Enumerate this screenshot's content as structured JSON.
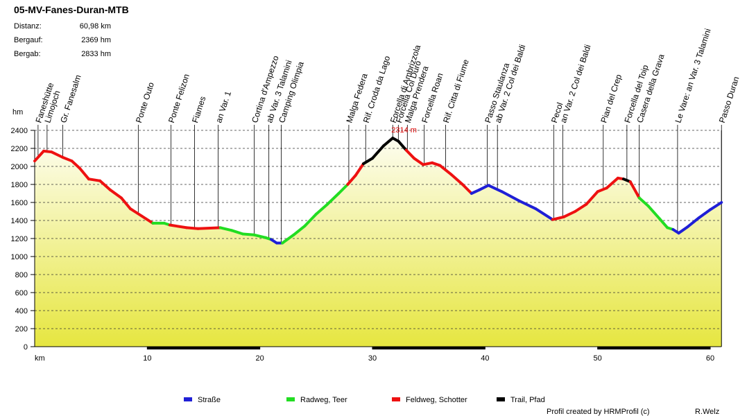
{
  "header": {
    "title": "05-MV-Fanes-Duran-MTB",
    "stats": [
      {
        "label": "Distanz:",
        "value": "60,98 km"
      },
      {
        "label": "Bergauf:",
        "value": "2369 hm"
      },
      {
        "label": "Bergab:",
        "value": "2833 hm"
      }
    ]
  },
  "chart_data": {
    "type": "elevation-profile",
    "x_label": "km",
    "y_label": "hm",
    "xlim": [
      0,
      61
    ],
    "xticks": [
      10,
      20,
      30,
      40,
      50,
      60
    ],
    "ylim": [
      0,
      2400
    ],
    "yticks": [
      0,
      200,
      400,
      600,
      800,
      1000,
      1200,
      1400,
      1600,
      1800,
      2000,
      2200,
      2400
    ],
    "grid": true,
    "x": [
      0,
      0.8,
      1.5,
      2.5,
      3.3,
      4.0,
      4.8,
      5.8,
      6.7,
      7.7,
      8.5,
      9.5,
      10.5,
      11.5,
      12.0,
      13.5,
      14.5,
      16.5,
      17.5,
      18.5,
      19.5,
      20.5,
      21.0,
      21.5,
      22.0,
      23,
      24,
      25,
      26,
      27,
      27.8,
      28.5,
      29.2,
      30,
      31,
      31.8,
      32.3,
      33,
      33.7,
      34.5,
      35.3,
      36,
      37,
      38,
      38.8,
      39.5,
      40.3,
      41.5,
      43,
      44.5,
      46,
      47,
      48,
      49,
      50,
      50.8,
      51.8,
      52.3,
      52.9,
      53.7,
      54.5,
      55.5,
      56.2,
      56.7,
      57.2,
      58,
      59,
      60,
      61
    ],
    "values": [
      2060,
      2170,
      2160,
      2100,
      2060,
      1980,
      1860,
      1840,
      1740,
      1650,
      1530,
      1450,
      1370,
      1370,
      1350,
      1320,
      1310,
      1320,
      1290,
      1250,
      1240,
      1210,
      1190,
      1150,
      1150,
      1240,
      1340,
      1470,
      1580,
      1700,
      1800,
      1900,
      2030,
      2090,
      2230,
      2314,
      2280,
      2180,
      2090,
      2020,
      2040,
      2010,
      1910,
      1800,
      1700,
      1740,
      1790,
      1720,
      1620,
      1530,
      1410,
      1440,
      1500,
      1580,
      1720,
      1760,
      1870,
      1860,
      1830,
      1650,
      1560,
      1420,
      1320,
      1300,
      1260,
      1330,
      1430,
      1520,
      1600
    ],
    "surface": [
      2,
      2,
      2,
      2,
      2,
      2,
      2,
      2,
      2,
      2,
      2,
      2,
      1,
      1,
      2,
      2,
      2,
      1,
      1,
      1,
      1,
      1,
      0,
      0,
      1,
      1,
      1,
      1,
      1,
      1,
      2,
      2,
      3,
      3,
      3,
      3,
      3,
      2,
      2,
      2,
      2,
      2,
      2,
      2,
      0,
      0,
      0,
      0,
      0,
      0,
      2,
      2,
      2,
      2,
      2,
      2,
      2,
      3,
      2,
      1,
      1,
      1,
      1,
      0,
      0,
      0,
      0,
      0
    ],
    "series": [
      {
        "name": "Straße",
        "color": "#1f1fd6"
      },
      {
        "name": "Radweg, Teer",
        "color": "#22dd22"
      },
      {
        "name": "Feldweg, Schotter",
        "color": "#ee1111"
      },
      {
        "name": "Trail, Pfad",
        "color": "#000000"
      }
    ],
    "peak_label": "2314 m",
    "waypoints": [
      {
        "label": "Faneshütte",
        "km": 0.3
      },
      {
        "label": "Limojoch",
        "km": 1.1
      },
      {
        "label": "Gr. Fanesalm",
        "km": 2.5
      },
      {
        "label": "Ponte Outo",
        "km": 9.2
      },
      {
        "label": "Ponte Felizon",
        "km": 12.1
      },
      {
        "label": "Fiames",
        "km": 14.2
      },
      {
        "label": "an Var. 1",
        "km": 16.3
      },
      {
        "label": "Cortina d'Ampezzo",
        "km": 19.5
      },
      {
        "label": "ab Var. 3 Talamini",
        "km": 20.8
      },
      {
        "label": "Camping Olimpia",
        "km": 21.9
      },
      {
        "label": "Malga Federa",
        "km": 27.9
      },
      {
        "label": "Rif. Croda da Lago",
        "km": 29.4
      },
      {
        "label": "Forcella di Ambrizzola",
        "km": 31.8
      },
      {
        "label": "Forcella Col Duro",
        "km": 32.3
      },
      {
        "label": "Malga Prendera",
        "km": 33.1
      },
      {
        "label": "Forcella Roan",
        "km": 34.6
      },
      {
        "label": "Rif. Citta di Fiume",
        "km": 36.5
      },
      {
        "label": "Passo Staulanza",
        "km": 40.2
      },
      {
        "label": "ab Var. 2 Col dei Baldi",
        "km": 41.1
      },
      {
        "label": "Pecol",
        "km": 46.1
      },
      {
        "label": "an Var. 2 Col dei Baldi",
        "km": 46.9
      },
      {
        "label": "Pian del Crep",
        "km": 50.5
      },
      {
        "label": "Forcella del Toip",
        "km": 52.6
      },
      {
        "label": "Casera della Grava",
        "km": 53.7
      },
      {
        "label": "Le Vare: an Var. 3 Talamini",
        "km": 57.1
      },
      {
        "label": "Passo Duran",
        "km": 61.0
      }
    ]
  },
  "footer": {
    "credit": "Profil created by HRMProfil (c)",
    "author": "R.Welz"
  }
}
